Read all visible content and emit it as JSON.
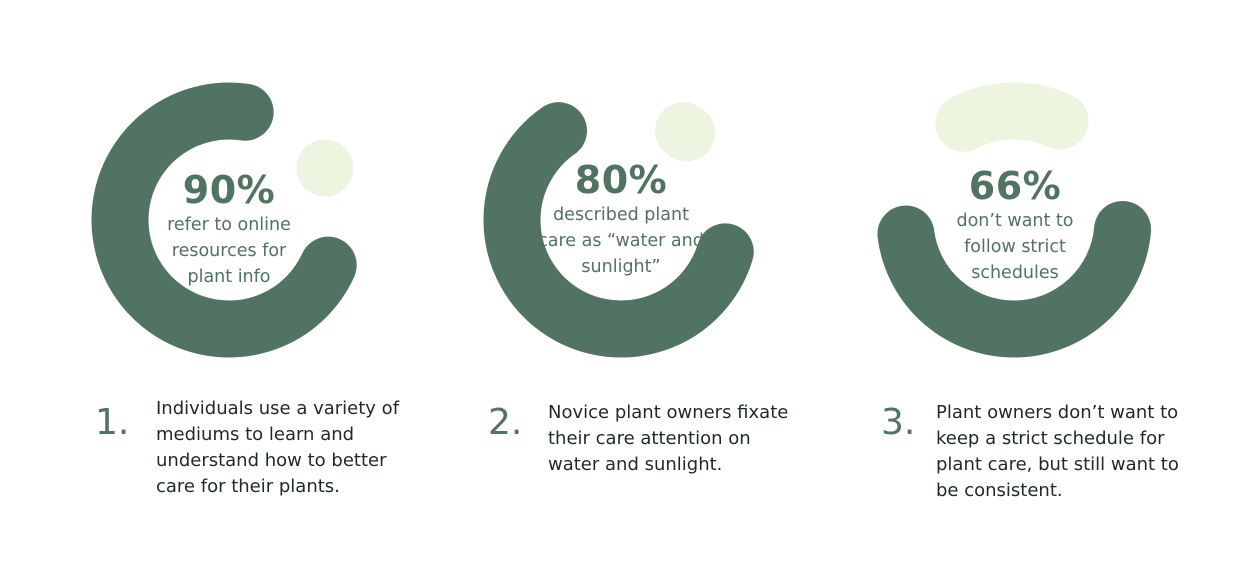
{
  "colors": {
    "main": "#517361",
    "remainder": "#edf5e1",
    "number": "#517361",
    "text": "#1f2a24"
  },
  "chart_data": [
    {
      "type": "pie",
      "variant": "donut",
      "values": [
        90,
        10
      ],
      "center_value": "90%",
      "center_label": "refer to online resources for plant info",
      "number": "1.",
      "caption": "Individuals use a variety of mediums to learn and understand how to better care for their plants."
    },
    {
      "type": "pie",
      "variant": "donut",
      "values": [
        80,
        20
      ],
      "center_value": "80%",
      "center_label": "described plant care as “water and sunlight”",
      "number": "2.",
      "caption": "Novice plant owners fixate their care attention on water and sunlight."
    },
    {
      "type": "pie",
      "variant": "donut",
      "values": [
        66,
        34
      ],
      "center_value": "66%",
      "center_label": "don’t want to follow strict schedules",
      "number": "3.",
      "caption": "Plant owners don’t want to keep a strict schedule for plant care, but still want to be consistent."
    }
  ]
}
